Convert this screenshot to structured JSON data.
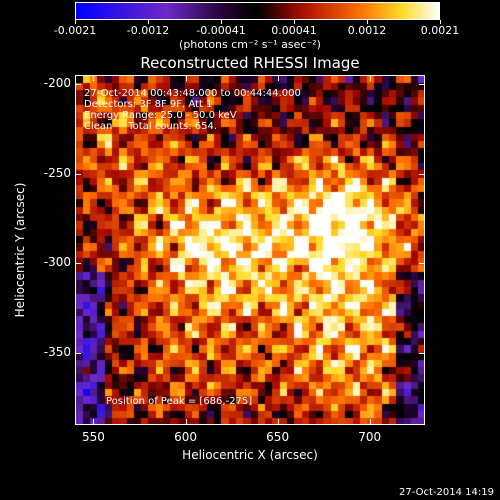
{
  "colorbar": {
    "tick_labels": [
      "-0.0021",
      "-0.0012",
      "-0.00041",
      "0.00041",
      "0.0012",
      "0.0021"
    ],
    "unit_label": "(photons cm⁻² s⁻¹ asec⁻²)"
  },
  "chart_data": {
    "type": "heatmap",
    "title": "Reconstructed RHESSI Image",
    "xlabel": "Heliocentric X (arcsec)",
    "ylabel": "Heliocentric Y (arcsec)",
    "xlim": [
      540,
      730
    ],
    "ylim": [
      -390,
      -195
    ],
    "xticks": [
      "550",
      "600",
      "650",
      "700"
    ],
    "yticks": [
      "-200",
      "-250",
      "-300",
      "-350"
    ],
    "value_range": [
      -0.0021,
      0.0021
    ],
    "peak_position": [
      686,
      -275
    ],
    "annotations": [
      "27-Oct-2014 00:43:48.000 to 00:44:44.000",
      "Detectors: 3F 8F 9F, Att 1",
      "Energy Range: 25.0 - 50.0 keV",
      "Clean     Total counts: 654.",
      "Position of Peak = [686,-275]"
    ]
  },
  "timestamp": "27-Oct-2014 14:19"
}
